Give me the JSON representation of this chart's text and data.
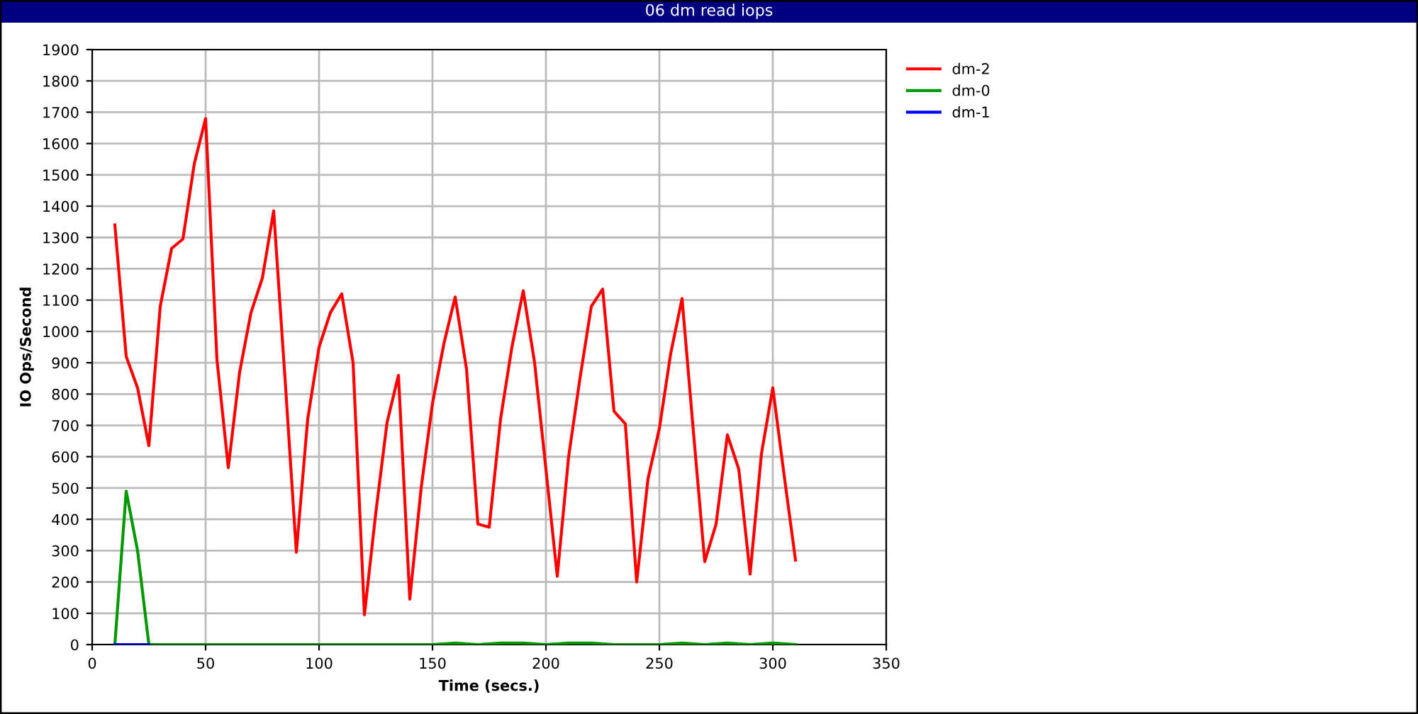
{
  "chart_data": {
    "type": "line",
    "title": "06 dm read iops",
    "xlabel": "Time (secs.)",
    "ylabel": "IO Ops/Second",
    "xlim": [
      0,
      350
    ],
    "xticks": [
      0,
      50,
      100,
      150,
      200,
      250,
      300,
      350
    ],
    "ylim": [
      0,
      1900
    ],
    "yticks": [
      0,
      100,
      200,
      300,
      400,
      500,
      600,
      700,
      800,
      900,
      1000,
      1100,
      1200,
      1300,
      1400,
      1500,
      1600,
      1700,
      1800,
      1900
    ],
    "grid": true,
    "legend": "top right",
    "marker": "none",
    "line_style": "solid",
    "series": [
      {
        "name": "dm-2",
        "color": "#ff0000",
        "x": [
          10,
          15,
          20,
          25,
          30,
          35,
          40,
          45,
          50,
          55,
          60,
          65,
          70,
          75,
          80,
          85,
          90,
          95,
          100,
          105,
          110,
          115,
          120,
          125,
          130,
          135,
          140,
          145,
          150,
          155,
          160,
          165,
          170,
          175,
          180,
          185,
          190,
          195,
          200,
          205,
          210,
          215,
          220,
          225,
          230,
          235,
          240,
          245,
          250,
          255,
          260,
          265,
          270,
          275,
          280,
          285,
          290,
          295,
          300,
          305,
          310
        ],
        "values": [
          1340,
          920,
          820,
          635,
          1080,
          1265,
          1295,
          1535,
          1680,
          910,
          565,
          870,
          1060,
          1170,
          1385,
          850,
          295,
          720,
          950,
          1060,
          1120,
          900,
          95,
          420,
          710,
          860,
          145,
          500,
          770,
          960,
          1110,
          880,
          385,
          375,
          720,
          950,
          1130,
          900,
          560,
          218,
          600,
          850,
          1080,
          1135,
          745,
          705,
          200,
          530,
          690,
          930,
          1105,
          680,
          265,
          385,
          670,
          560,
          225,
          610,
          820,
          540,
          270
        ]
      },
      {
        "name": "dm-0",
        "color": "#009900",
        "x": [
          10,
          15,
          20,
          25,
          30,
          40,
          50,
          60,
          70,
          80,
          90,
          100,
          110,
          120,
          130,
          140,
          150,
          160,
          170,
          180,
          190,
          200,
          210,
          220,
          230,
          240,
          250,
          260,
          270,
          280,
          290,
          300,
          310
        ],
        "values": [
          0,
          490,
          300,
          0,
          0,
          0,
          0,
          0,
          0,
          0,
          0,
          0,
          0,
          0,
          0,
          0,
          0,
          5,
          0,
          5,
          5,
          0,
          5,
          5,
          0,
          0,
          0,
          5,
          0,
          5,
          0,
          5,
          0
        ]
      },
      {
        "name": "dm-1",
        "color": "#0000ff",
        "x": [
          10,
          15,
          20,
          25
        ],
        "values": [
          0,
          0,
          0,
          0
        ]
      }
    ]
  }
}
